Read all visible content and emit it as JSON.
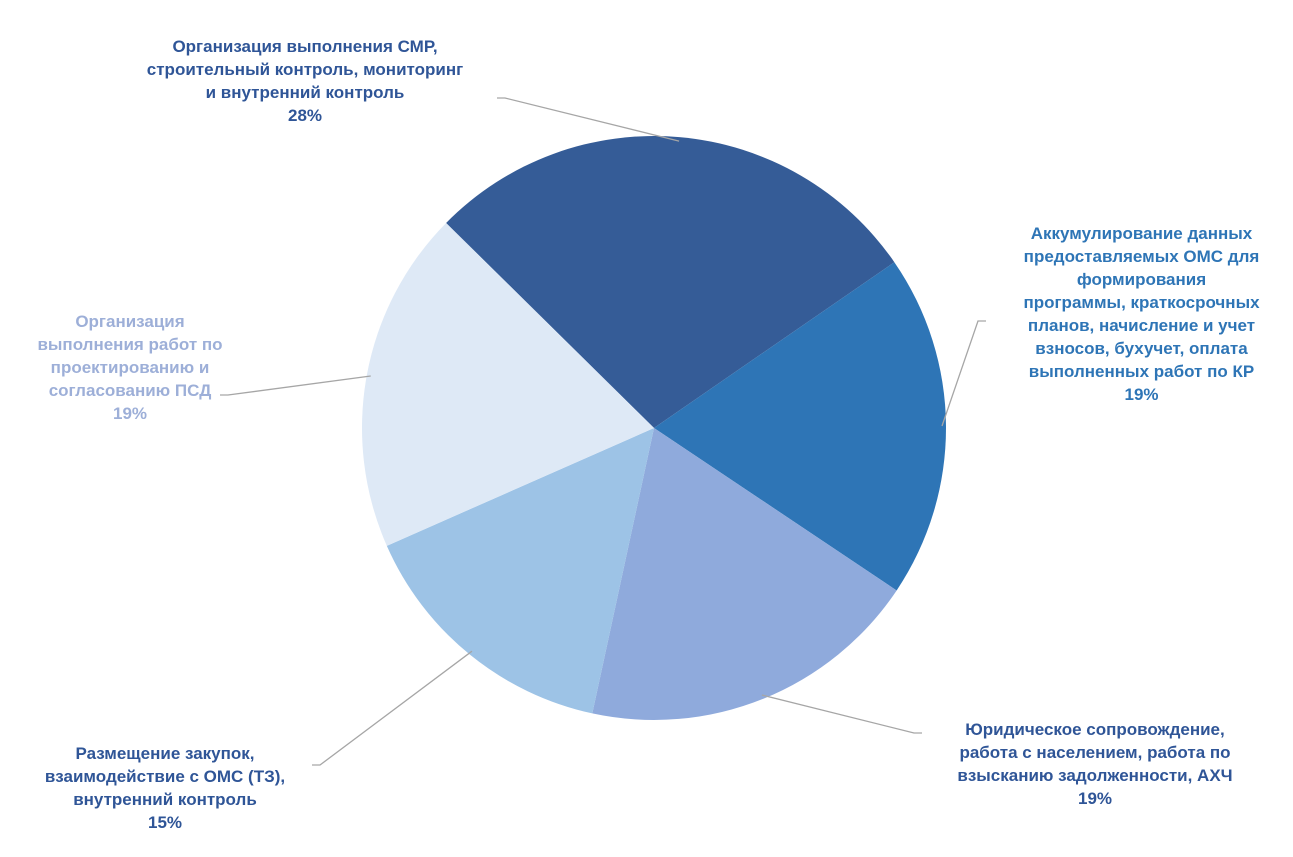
{
  "chart_data": {
    "type": "pie",
    "title": "",
    "series": [
      {
        "name": "",
        "slices": [
          {
            "label": "Организация выполнения СМР,\nстроительный контроль, мониторинг\nи внутренний контроль",
            "value": 28,
            "value_label": "28%",
            "color": "#355c97",
            "label_color": "#2f5597"
          },
          {
            "label": "Аккумулирование данных\nпредоставляемых ОМС  для\nформирования\nпрограммы, краткосрочных\nпланов, начисление и учет\nвзносов, бухучет, оплата\nвыполненных работ по КР",
            "value": 19,
            "value_label": "19%",
            "color": "#2e75b6",
            "label_color": "#2e75b6"
          },
          {
            "label": "Юридическое сопровождение,\nработа с населением, работа по\nвзысканию задолженности, АХЧ",
            "value": 19,
            "value_label": "19%",
            "color": "#8faadc",
            "label_color": "#2f5597"
          },
          {
            "label": "Размещение закупок,\nвзаимодействие с ОМС (ТЗ),\nвнутренний контроль",
            "value": 15,
            "value_label": "15%",
            "color": "#9dc3e6",
            "label_color": "#2f5597"
          },
          {
            "label": "Организация\nвыполнения работ по\nпроектированию и\nсогласованию ПСД",
            "value": 19,
            "value_label": "19%",
            "color": "#dee9f6",
            "label_color": "#9dafd8"
          }
        ]
      }
    ],
    "legend": "none",
    "data_labels": "outside with leader lines"
  }
}
